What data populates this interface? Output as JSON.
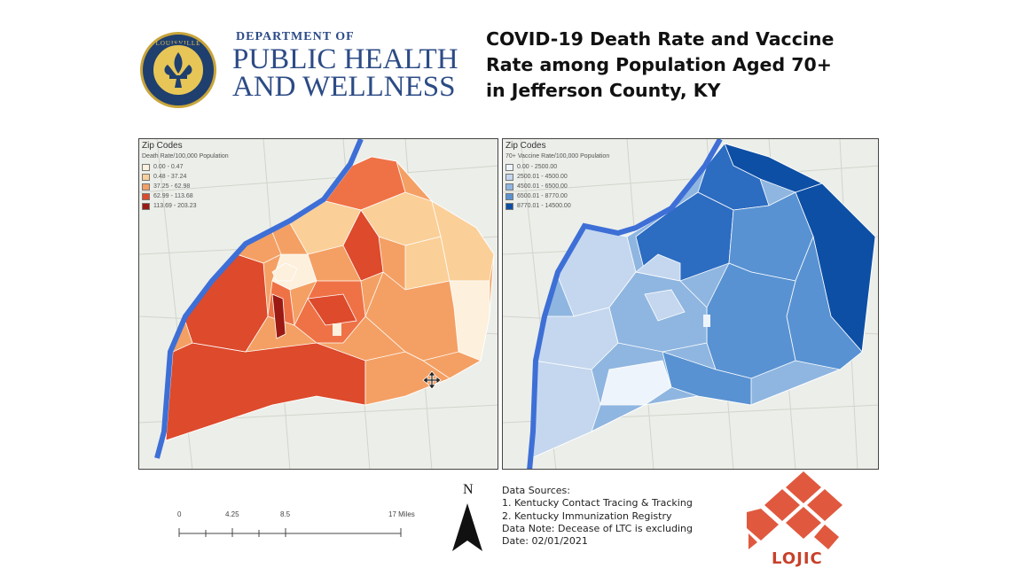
{
  "header": {
    "seal_label": "LOUISVILLE",
    "dept_line1": "DEPARTMENT OF",
    "dept_line2": "PUBLIC HEALTH",
    "dept_line3": "AND WELLNESS",
    "title_line1": "COVID-19 Death Rate and Vaccine",
    "title_line2": "Rate among Population Aged 70+",
    "title_line3": "in Jefferson County, KY"
  },
  "maps": {
    "death": {
      "legend_title": "Zip Codes",
      "legend_subtitle": "Death Rate/100,000 Population",
      "ranges": [
        "0.00 - 0.47",
        "0.48 - 37.24",
        "37.25 - 62.98",
        "62.99 - 113.68",
        "113.69 - 203.23"
      ],
      "colors": [
        "#fdf0dc",
        "#fbcf98",
        "#f4a064",
        "#ef7246",
        "#dd4a2c",
        "#9b1a13"
      ]
    },
    "vaccine": {
      "legend_title": "Zip Codes",
      "legend_subtitle": "70+ Vaccine Rate/100,000 Population",
      "ranges": [
        "0.00 - 2500.00",
        "2500.01 - 4500.00",
        "4500.01 - 6500.00",
        "6500.01 - 8770.00",
        "8770.01 - 14500.00"
      ],
      "colors": [
        "#eef4fb",
        "#c4d7ee",
        "#8fb6e0",
        "#5892d2",
        "#2c6cc1",
        "#0d4fa5"
      ]
    },
    "river_color": "#3d6fd6"
  },
  "scale_bar": {
    "labels": [
      "0",
      "4.25",
      "8.5",
      "17 Miles"
    ]
  },
  "north": "N",
  "sources": {
    "line1": "Data Sources:",
    "line2": "1. Kentucky Contact Tracing & Tracking",
    "line3": "2. Kentucky Immunization Registry",
    "line4": "Data Note: Decease of LTC is excluding",
    "line5": "Date: 02/01/2021"
  },
  "logo_text": "LOJIC",
  "logo_color": "#e0593f"
}
